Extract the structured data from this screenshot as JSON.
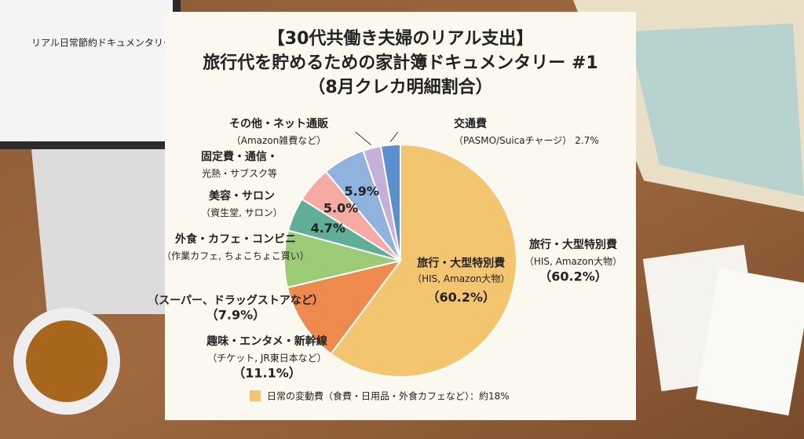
{
  "background": {
    "laptop_title": "リアル日常節約ドキュメンタリー"
  },
  "chart_data": {
    "type": "pie",
    "title": [
      "【30代共働き夫婦のリアル支出】",
      "旅行代を貯めるための家計簿ドキュメンタリー #1",
      "（8月クレカ明細割合）"
    ],
    "categories": [
      "旅行・大型特別費",
      "趣味・エンタメ・新幹線",
      "（スーパー、ドラッグストアなど）",
      "外食・カフェ・コンビニ",
      "美容・サロン",
      "固定費・通信・",
      "その他・ネット通販",
      "交通費"
    ],
    "sublabels": [
      "（HIS, Amazon大物）",
      "（チケット, JR東日本など）",
      null,
      "（作業カフェ, ちょこちょこ買い）",
      "（資生堂, サロン）",
      "光熱・サブスク等",
      "（Amazon雑費など）",
      "（PASMO/Suicaチャージ）"
    ],
    "values": [
      60.2,
      11.1,
      7.9,
      4.7,
      5.0,
      5.9,
      2.5,
      2.7
    ],
    "value_labels": [
      "（60.2%）",
      "（11.1%）",
      "（7.9%）",
      "4.7%",
      "5.0%",
      "5.9%",
      null,
      "2.7%"
    ],
    "colors": [
      "#f3c56f",
      "#ee8a4e",
      "#9ccb78",
      "#5fae98",
      "#f5aaa2",
      "#8fb3dd",
      "#c4b0da",
      "#5b8fcf"
    ],
    "footnote": {
      "color": "#f3c56f",
      "text": "日常の変動費（食費・日用品・外食カフェなど）：約18%"
    }
  }
}
